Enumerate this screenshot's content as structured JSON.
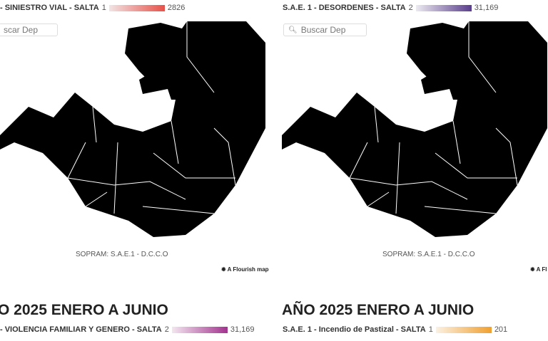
{
  "panels": [
    {
      "legend_title": "- SINIESTRO VIAL - SALTA",
      "min": "1",
      "max": "2826",
      "color_min": "#f1e4e4",
      "color_max": "#e8514a",
      "search_placeholder": "scar Dep",
      "source": "SOPRAM: S.A.E.1 - D.C.C.O",
      "credit": "A Flourish map",
      "highlight": "#e8514a",
      "north_fill": "#f0dcdb",
      "mid_fill": "#f3e6e6"
    },
    {
      "legend_title": "S.A.E. 1 - DESORDENES - SALTA",
      "min": "2",
      "max": "31,169",
      "color_min": "#eceaf1",
      "color_max": "#5a3d8c",
      "search_placeholder": "Buscar Dep",
      "source": "SOPRAM: S.A.E.1 - D.C.C.O",
      "credit": "A Fl",
      "highlight": "#58398b",
      "north_fill": "#e3e0ea",
      "mid_fill": "#ebebeb"
    }
  ],
  "bottom": [
    {
      "year_title": "O 2025 ENERO A JUNIO",
      "legend_title": "- VIOLENCIA FAMILIAR Y GENERO - SALTA",
      "min": "2",
      "max": "31,169",
      "color_min": "#f3e6f0",
      "color_max": "#a3348f"
    },
    {
      "year_title": "AÑO 2025 ENERO A JUNIO",
      "legend_title": "S.A.E. 1 - Incendio de Pastizal - SALTA",
      "min": "1",
      "max": "201",
      "color_min": "#fbf1e3",
      "color_max": "#f0a030"
    }
  ],
  "base_fill": "#ebebeb",
  "icons": {
    "search": "search-icon",
    "flourish": "flourish-logo-icon"
  }
}
